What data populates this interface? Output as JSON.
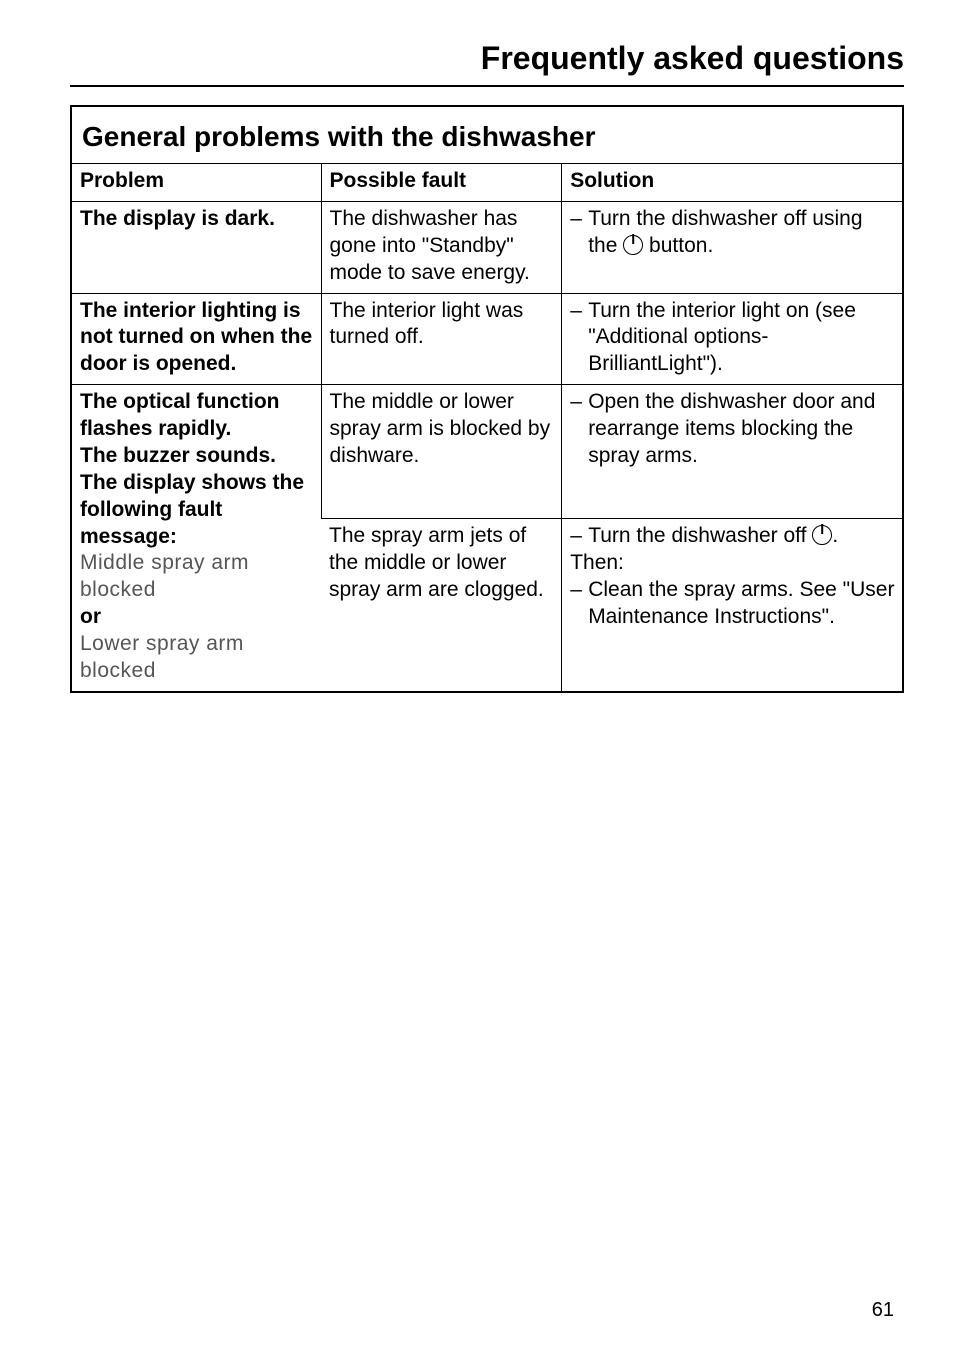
{
  "page": {
    "title": "Frequently asked questions",
    "number": "61"
  },
  "section": {
    "title": "General problems with the dishwasher"
  },
  "table": {
    "headers": {
      "problem": "Problem",
      "fault": "Possible fault",
      "solution": "Solution"
    },
    "rows": [
      {
        "problem": "The display is dark.",
        "fault": "The dishwasher has gone into \"Standby\" mode to save energy.",
        "solution_pre": "Turn the dishwasher off using the ",
        "solution_post": " button."
      },
      {
        "problem": "The interior lighting is not turned on when the door is opened.",
        "fault": "The interior light was turned off.",
        "solution": "Turn the interior light on (see  \"Additional options- BrilliantLight\")."
      },
      {
        "problem_intro": "The optical function flashes rapidly.\nThe buzzer sounds.",
        "problem_display_lead": "The display shows the following fault message:",
        "problem_msg1": "Middle spray arm blocked",
        "problem_or": "or",
        "problem_msg2": "Lower spray arm blocked",
        "fault_a": "The middle or lower spray arm is blocked by dishware.",
        "solution_a": "Open the dishwasher door and rearrange items blocking the spray arms.",
        "fault_b": "The spray arm jets of the middle or lower spray arm are clogged.",
        "solution_b_pre": "Turn the dishwasher off ",
        "solution_b_post": ".",
        "solution_b_then": "Then:",
        "solution_b2": "Clean the spray arms. See \"User Maintenance Instructions\"."
      }
    ]
  },
  "style": {
    "text_color": "#000000",
    "background_color": "#ffffff",
    "border_color": "#000000",
    "lcd_color": "#555555",
    "title_fontsize": 32,
    "section_fontsize": 28,
    "body_fontsize": 21
  }
}
